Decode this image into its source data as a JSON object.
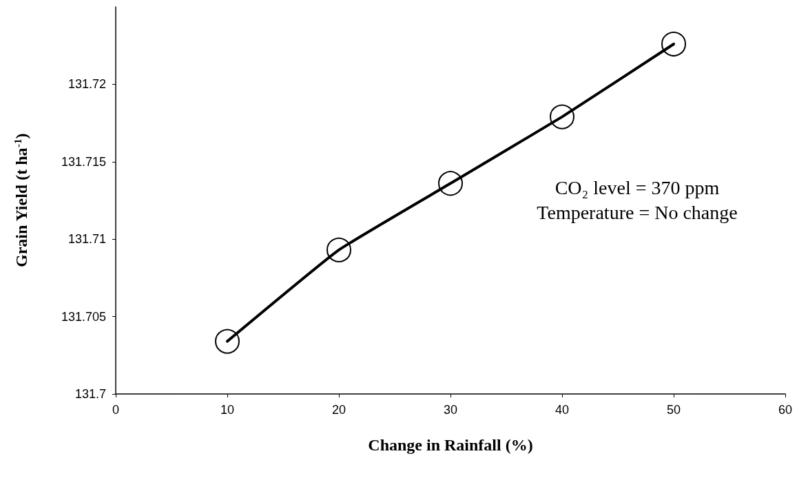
{
  "chart_data": {
    "type": "line",
    "xlabel": "Change in Rainfall (%)",
    "ylabel": "Grain Yield (t ha$^{-1}$)",
    "x": [
      10,
      20,
      30,
      40,
      50
    ],
    "series": [
      {
        "color": "#000000",
        "values": [
          131.7034,
          131.7093,
          131.7136,
          131.7179,
          131.7226
        ]
      }
    ],
    "xlim": [
      0,
      60
    ],
    "xticks": [
      0,
      10,
      20,
      30,
      40,
      50,
      60
    ],
    "ylim": [
      131.7,
      131.725
    ],
    "yticks": [
      131.7,
      131.705,
      131.71,
      131.715,
      131.72
    ],
    "grid": false,
    "marker": "circle",
    "line_style": "solid",
    "annotations": [
      "CO₂ level = 370 ppm",
      "Temperature = No change"
    ]
  }
}
